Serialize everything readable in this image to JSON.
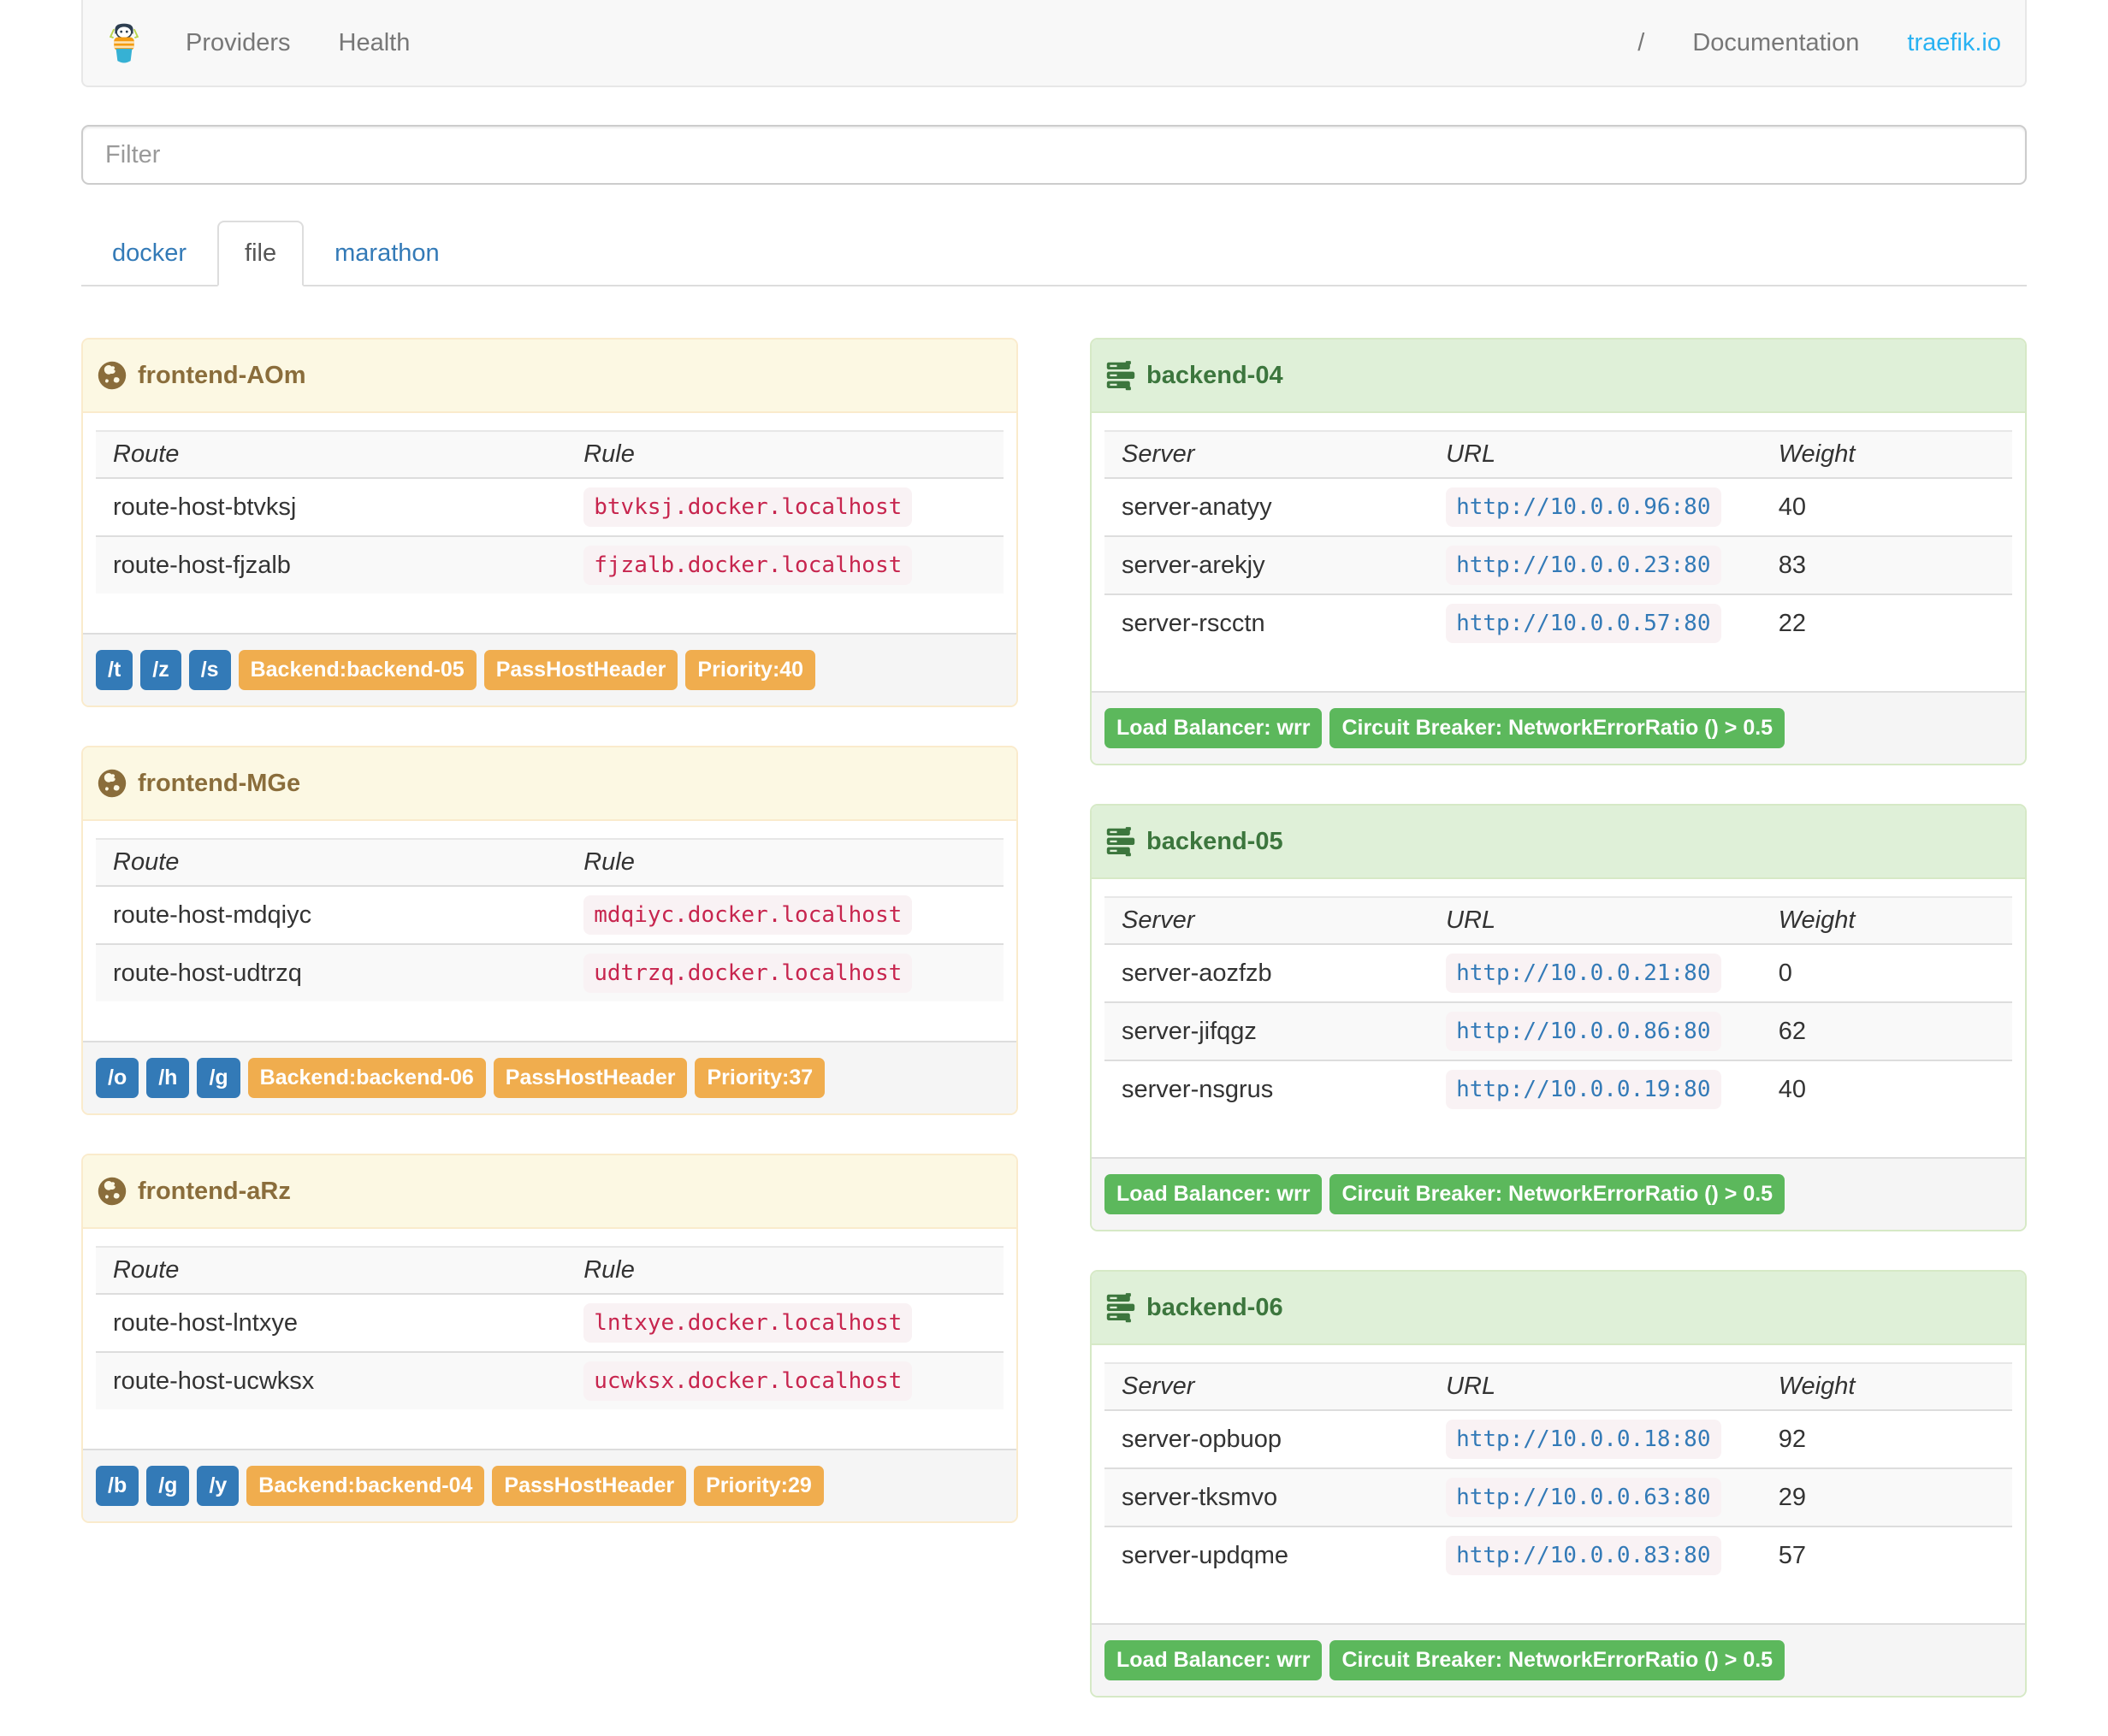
{
  "navbar": {
    "providers": "Providers",
    "health": "Health",
    "slash": "/",
    "documentation": "Documentation",
    "site": "traefik.io"
  },
  "filter": {
    "placeholder": "Filter"
  },
  "tabs": [
    {
      "label": "docker",
      "active": false
    },
    {
      "label": "file",
      "active": true
    },
    {
      "label": "marathon",
      "active": false
    }
  ],
  "frontends": [
    {
      "title": "frontend-AOm",
      "columns": [
        "Route",
        "Rule"
      ],
      "routes": [
        {
          "route": "route-host-btvksj",
          "rule": "btvksj.docker.localhost"
        },
        {
          "route": "route-host-fjzalb",
          "rule": "fjzalb.docker.localhost"
        }
      ],
      "entry_points": [
        "/t",
        "/z",
        "/s"
      ],
      "tags": [
        "Backend:backend-05",
        "PassHostHeader",
        "Priority:40"
      ]
    },
    {
      "title": "frontend-MGe",
      "columns": [
        "Route",
        "Rule"
      ],
      "routes": [
        {
          "route": "route-host-mdqiyc",
          "rule": "mdqiyc.docker.localhost"
        },
        {
          "route": "route-host-udtrzq",
          "rule": "udtrzq.docker.localhost"
        }
      ],
      "entry_points": [
        "/o",
        "/h",
        "/g"
      ],
      "tags": [
        "Backend:backend-06",
        "PassHostHeader",
        "Priority:37"
      ]
    },
    {
      "title": "frontend-aRz",
      "columns": [
        "Route",
        "Rule"
      ],
      "routes": [
        {
          "route": "route-host-lntxye",
          "rule": "lntxye.docker.localhost"
        },
        {
          "route": "route-host-ucwksx",
          "rule": "ucwksx.docker.localhost"
        }
      ],
      "entry_points": [
        "/b",
        "/g",
        "/y"
      ],
      "tags": [
        "Backend:backend-04",
        "PassHostHeader",
        "Priority:29"
      ]
    }
  ],
  "backends": [
    {
      "title": "backend-04",
      "columns": [
        "Server",
        "URL",
        "Weight"
      ],
      "servers": [
        {
          "server": "server-anatyy",
          "url": "http://10.0.0.96:80",
          "weight": "40"
        },
        {
          "server": "server-arekjy",
          "url": "http://10.0.0.23:80",
          "weight": "83"
        },
        {
          "server": "server-rscctn",
          "url": "http://10.0.0.57:80",
          "weight": "22"
        }
      ],
      "tags": [
        "Load Balancer: wrr",
        "Circuit Breaker: NetworkErrorRatio () > 0.5"
      ]
    },
    {
      "title": "backend-05",
      "columns": [
        "Server",
        "URL",
        "Weight"
      ],
      "servers": [
        {
          "server": "server-aozfzb",
          "url": "http://10.0.0.21:80",
          "weight": "0"
        },
        {
          "server": "server-jifqgz",
          "url": "http://10.0.0.86:80",
          "weight": "62"
        },
        {
          "server": "server-nsgrus",
          "url": "http://10.0.0.19:80",
          "weight": "40"
        }
      ],
      "tags": [
        "Load Balancer: wrr",
        "Circuit Breaker: NetworkErrorRatio () > 0.5"
      ]
    },
    {
      "title": "backend-06",
      "columns": [
        "Server",
        "URL",
        "Weight"
      ],
      "servers": [
        {
          "server": "server-opbuop",
          "url": "http://10.0.0.18:80",
          "weight": "92"
        },
        {
          "server": "server-tksmvo",
          "url": "http://10.0.0.63:80",
          "weight": "29"
        },
        {
          "server": "server-updqme",
          "url": "http://10.0.0.83:80",
          "weight": "57"
        }
      ],
      "tags": [
        "Load Balancer: wrr",
        "Circuit Breaker: NetworkErrorRatio () > 0.5"
      ]
    }
  ],
  "colors": {
    "frontend_header_bg": "#fcf8e3",
    "frontend_header_text": "#8a6d3b",
    "frontend_border": "#faebcc",
    "backend_header_bg": "#dff0d8",
    "backend_header_text": "#3c763d",
    "backend_border": "#d6e9c6",
    "label_blue": "#337ab7",
    "label_orange": "#f0ad4e",
    "label_green": "#5cb85c",
    "rule_code_text": "#c7254e",
    "url_code_text": "#337ab7",
    "code_bg": "#f9f2f4",
    "site_link": "#29b2f2",
    "tab_link": "#337ab7"
  }
}
